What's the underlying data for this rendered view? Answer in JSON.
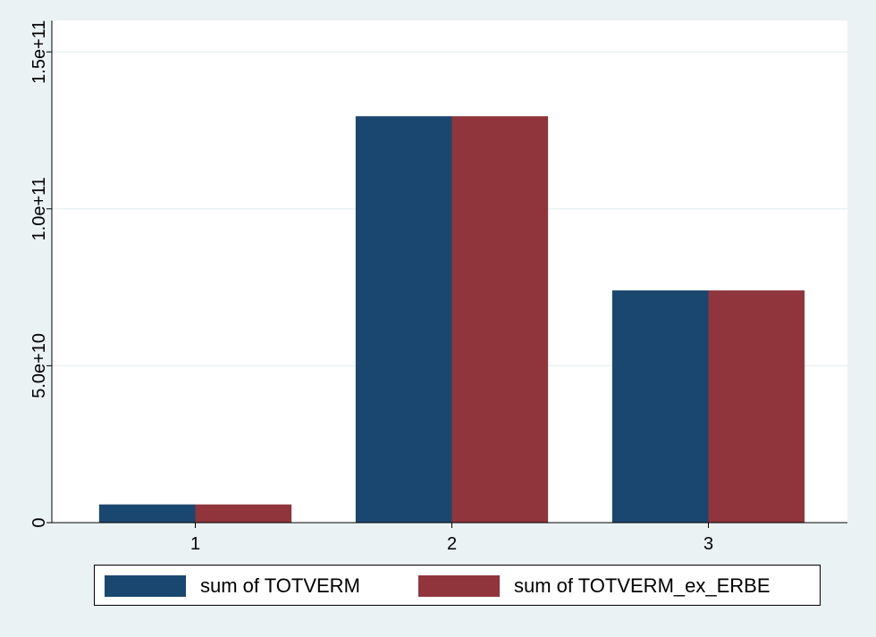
{
  "chart_data": {
    "type": "bar",
    "categories": [
      "1",
      "2",
      "3"
    ],
    "series": [
      {
        "name": "sum of TOTVERM",
        "color": "#1a476f",
        "values": [
          5800000000,
          129500000000,
          74000000000
        ]
      },
      {
        "name": "sum of TOTVERM_ex_ERBE",
        "color": "#90353b",
        "values": [
          5800000000,
          129500000000,
          74000000000
        ]
      }
    ],
    "title": "",
    "xlabel": "",
    "ylabel": "",
    "ylim": [
      0,
      160000000000
    ],
    "yticks": [
      {
        "value": 0,
        "label": "0"
      },
      {
        "value": 50000000000,
        "label": "5.0e+10"
      },
      {
        "value": 100000000000,
        "label": "1.0e+11"
      },
      {
        "value": 150000000000,
        "label": "1.5e+11"
      }
    ],
    "grid": true,
    "legend": "bottom",
    "colors": {
      "background": "#eaf2f3",
      "plot_background": "#ffffff",
      "grid": "#eaf2f3"
    }
  }
}
